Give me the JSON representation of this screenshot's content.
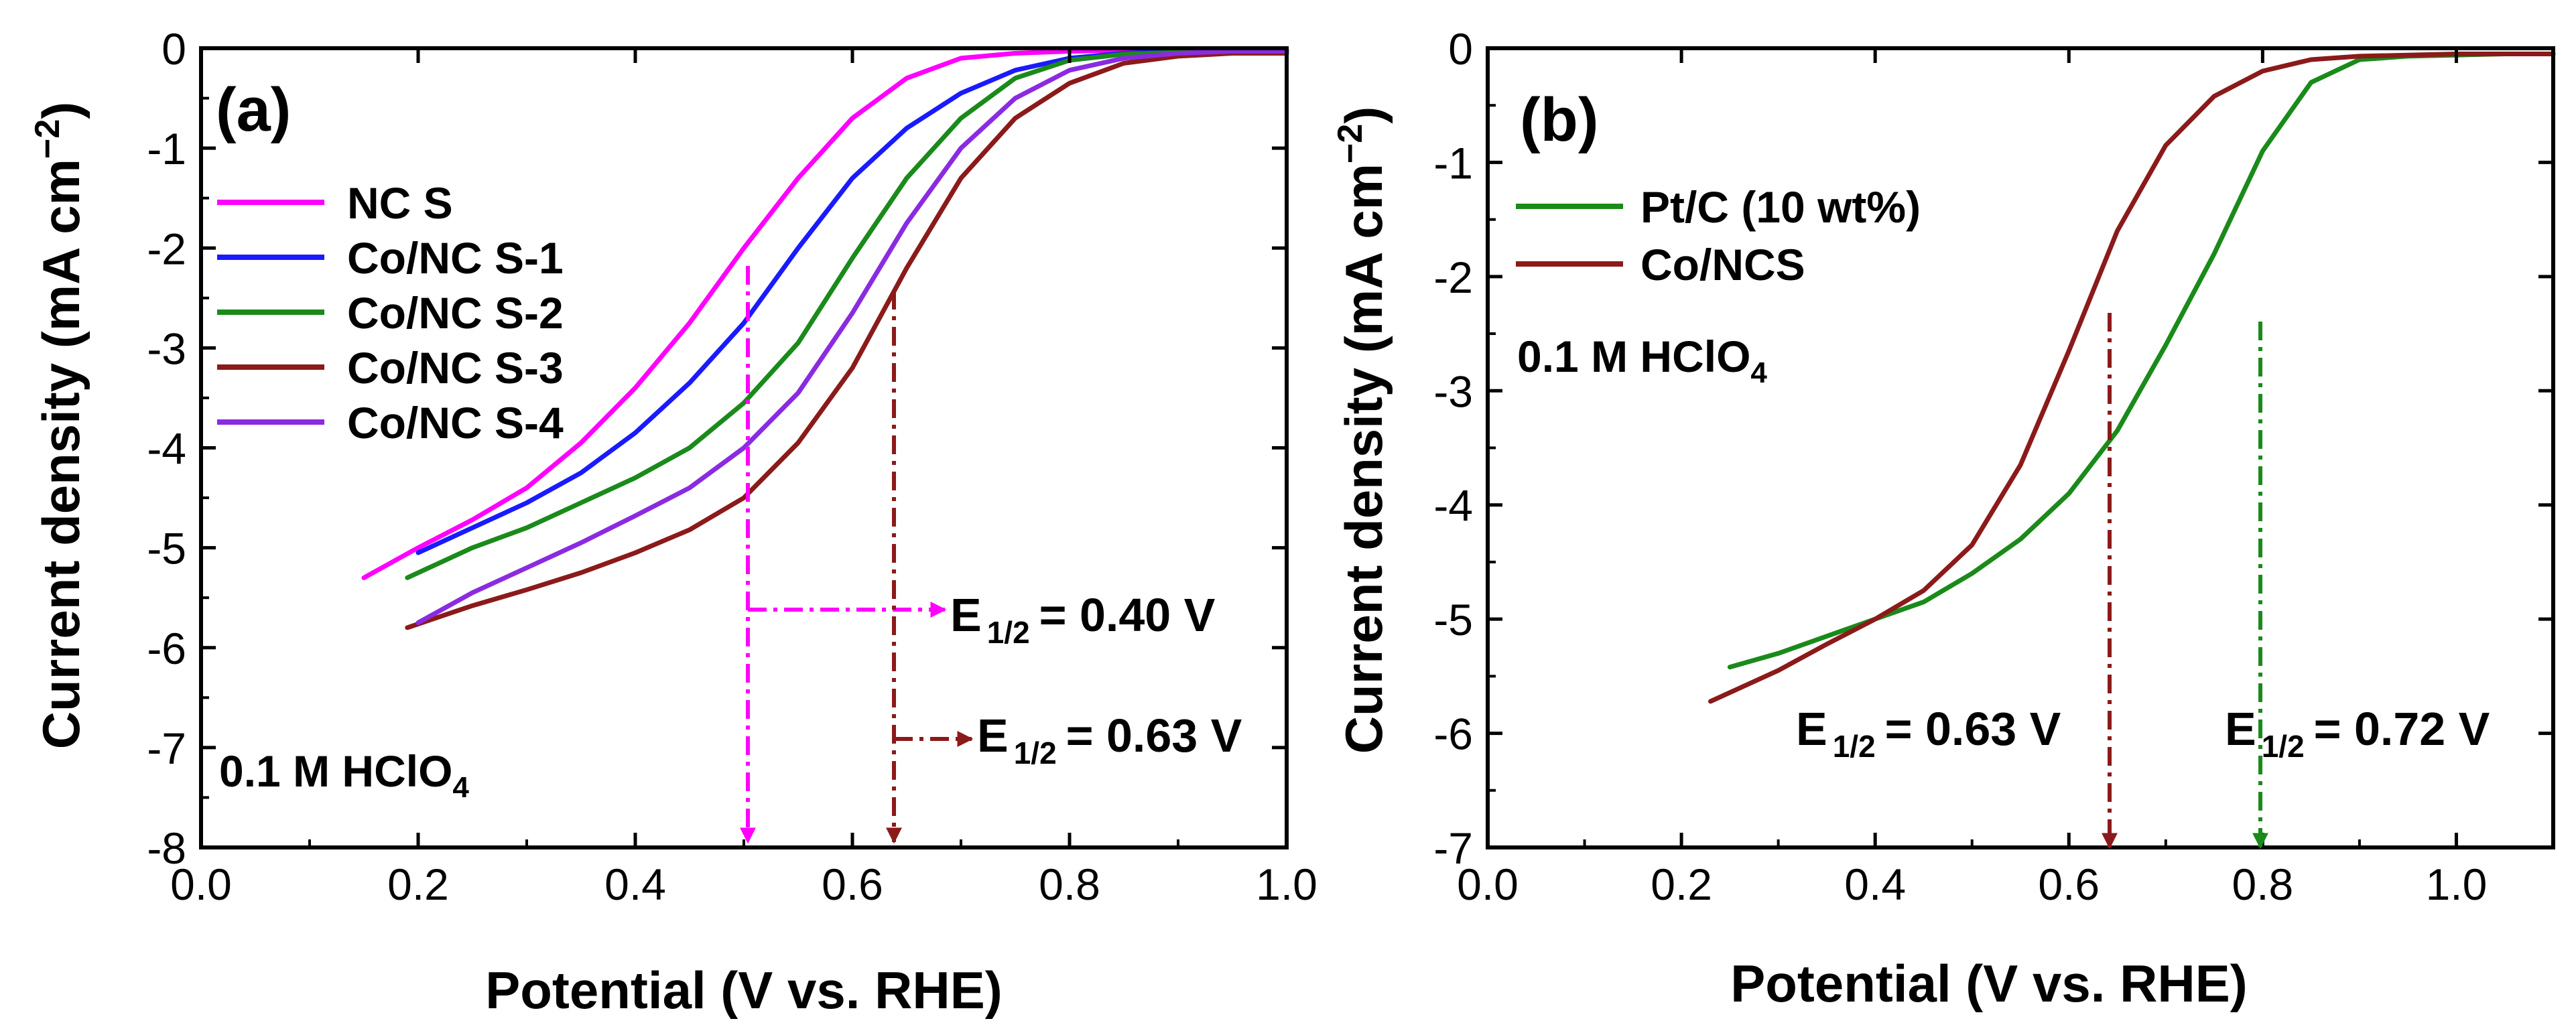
{
  "chart_data": [
    {
      "panel": "(a)",
      "type": "line",
      "xlabel": "Potential (V vs. RHE)",
      "ylabel_main": "Current density (mA cm",
      "ylabel_sup": "−2",
      "ylabel_close": ")",
      "xlim": [
        0.0,
        1.0
      ],
      "ylim": [
        -8,
        0
      ],
      "xticks": [
        0.0,
        0.2,
        0.4,
        0.6,
        0.8,
        1.0
      ],
      "xtick_labels": [
        "0.0",
        "0.2",
        "0.4",
        "0.6",
        "0.8",
        "1.0"
      ],
      "yticks": [
        0,
        -1,
        -2,
        -3,
        -4,
        -5,
        -6,
        -7,
        -8
      ],
      "ytick_labels": [
        "0",
        "-1",
        "-2",
        "-3",
        "-4",
        "-5",
        "-6",
        "-7",
        "-8"
      ],
      "electrolyte": {
        "main": "0.1 M HClO",
        "sub": "4"
      },
      "legend_position": "top-left",
      "series": [
        {
          "name": "NC S",
          "color": "#ff00ff",
          "x": [
            0.15,
            0.2,
            0.25,
            0.3,
            0.35,
            0.4,
            0.45,
            0.5,
            0.55,
            0.6,
            0.65,
            0.7,
            0.75,
            0.8,
            0.85,
            0.9,
            0.95,
            1.0
          ],
          "y": [
            -5.3,
            -5.0,
            -4.72,
            -4.4,
            -3.95,
            -3.4,
            -2.75,
            -2.0,
            -1.3,
            -0.7,
            -0.3,
            -0.1,
            -0.05,
            -0.03,
            -0.02,
            -0.02,
            -0.02,
            -0.02
          ]
        },
        {
          "name": "Co/NC S-1",
          "color": "#1a1aff",
          "x": [
            0.2,
            0.25,
            0.3,
            0.35,
            0.4,
            0.45,
            0.5,
            0.55,
            0.6,
            0.65,
            0.7,
            0.75,
            0.8,
            0.85,
            0.9,
            0.95,
            1.0
          ],
          "y": [
            -5.05,
            -4.8,
            -4.55,
            -4.25,
            -3.85,
            -3.35,
            -2.75,
            -2.0,
            -1.3,
            -0.8,
            -0.45,
            -0.22,
            -0.1,
            -0.05,
            -0.03,
            -0.02,
            -0.02
          ]
        },
        {
          "name": "Co/NC S-2",
          "color": "#1a8a1a",
          "x": [
            0.19,
            0.25,
            0.3,
            0.35,
            0.4,
            0.45,
            0.5,
            0.55,
            0.6,
            0.65,
            0.7,
            0.75,
            0.8,
            0.85,
            0.9,
            0.95,
            1.0
          ],
          "y": [
            -5.3,
            -5.0,
            -4.8,
            -4.55,
            -4.3,
            -4.0,
            -3.55,
            -2.95,
            -2.1,
            -1.3,
            -0.7,
            -0.3,
            -0.12,
            -0.06,
            -0.04,
            -0.03,
            -0.03
          ]
        },
        {
          "name": "Co/NC S-3",
          "color": "#8b1a1a",
          "x": [
            0.19,
            0.25,
            0.3,
            0.35,
            0.4,
            0.45,
            0.5,
            0.55,
            0.6,
            0.65,
            0.7,
            0.75,
            0.8,
            0.85,
            0.9,
            0.95,
            1.0
          ],
          "y": [
            -5.8,
            -5.58,
            -5.42,
            -5.25,
            -5.05,
            -4.82,
            -4.5,
            -3.95,
            -3.2,
            -2.2,
            -1.3,
            -0.7,
            -0.35,
            -0.15,
            -0.08,
            -0.05,
            -0.05
          ]
        },
        {
          "name": "Co/NC S-4",
          "color": "#8a2be2",
          "x": [
            0.2,
            0.25,
            0.3,
            0.35,
            0.4,
            0.45,
            0.5,
            0.55,
            0.6,
            0.65,
            0.7,
            0.75,
            0.8,
            0.85,
            0.9,
            0.95,
            1.0
          ],
          "y": [
            -5.75,
            -5.45,
            -5.2,
            -4.95,
            -4.68,
            -4.4,
            -4.0,
            -3.45,
            -2.65,
            -1.75,
            -1.0,
            -0.5,
            -0.22,
            -0.1,
            -0.05,
            -0.03,
            -0.03
          ]
        }
      ],
      "annotations": [
        {
          "prefix": "E",
          "sub": "1/2",
          "text": "= 0.40 V",
          "color": "#ff00ff"
        },
        {
          "prefix": "E",
          "sub": "1/2",
          "text": "= 0.63 V",
          "color": "#8b1a1a"
        }
      ]
    },
    {
      "panel": "(b)",
      "type": "line",
      "xlabel": "Potential (V vs. RHE)",
      "ylabel_main": "Current density (mA cm",
      "ylabel_sup": "−2",
      "ylabel_close": ")",
      "xlim": [
        0.0,
        1.1
      ],
      "ylim": [
        -7,
        0
      ],
      "xticks": [
        0.0,
        0.2,
        0.4,
        0.6,
        0.8,
        1.0
      ],
      "xtick_labels": [
        "0.0",
        "0.2",
        "0.4",
        "0.6",
        "0.8",
        "1.0"
      ],
      "yticks": [
        0,
        -1,
        -2,
        -3,
        -4,
        -5,
        -6,
        -7
      ],
      "ytick_labels": [
        "0",
        "-1",
        "-2",
        "-3",
        "-4",
        "-5",
        "-6",
        "-7"
      ],
      "electrolyte": {
        "main": "0.1 M HClO",
        "sub": "4"
      },
      "legend_position": "top-left",
      "series": [
        {
          "name": "Pt/C (10 wt%)",
          "color": "#1a8a1a",
          "x": [
            0.25,
            0.3,
            0.35,
            0.4,
            0.45,
            0.5,
            0.55,
            0.6,
            0.65,
            0.7,
            0.75,
            0.8,
            0.85,
            0.9,
            0.95,
            1.0,
            1.05,
            1.1
          ],
          "y": [
            -5.42,
            -5.3,
            -5.15,
            -5.0,
            -4.85,
            -4.6,
            -4.3,
            -3.9,
            -3.35,
            -2.6,
            -1.8,
            -0.9,
            -0.3,
            -0.1,
            -0.07,
            -0.06,
            -0.05,
            -0.05
          ]
        },
        {
          "name": "Co/NCS",
          "color": "#8b1a1a",
          "x": [
            0.23,
            0.3,
            0.35,
            0.4,
            0.45,
            0.5,
            0.55,
            0.6,
            0.65,
            0.7,
            0.75,
            0.8,
            0.85,
            0.9,
            0.95,
            1.0,
            1.05,
            1.1
          ],
          "y": [
            -5.72,
            -5.45,
            -5.22,
            -5.0,
            -4.75,
            -4.35,
            -3.65,
            -2.65,
            -1.6,
            -0.85,
            -0.42,
            -0.2,
            -0.1,
            -0.07,
            -0.06,
            -0.05,
            -0.05,
            -0.05
          ]
        }
      ],
      "annotations": [
        {
          "prefix": "E",
          "sub": "1/2",
          "text": "= 0.63 V",
          "color": "#8b1a1a"
        },
        {
          "prefix": "E",
          "sub": "1/2",
          "text": "= 0.72 V",
          "color": "#1a8a1a"
        }
      ]
    }
  ]
}
